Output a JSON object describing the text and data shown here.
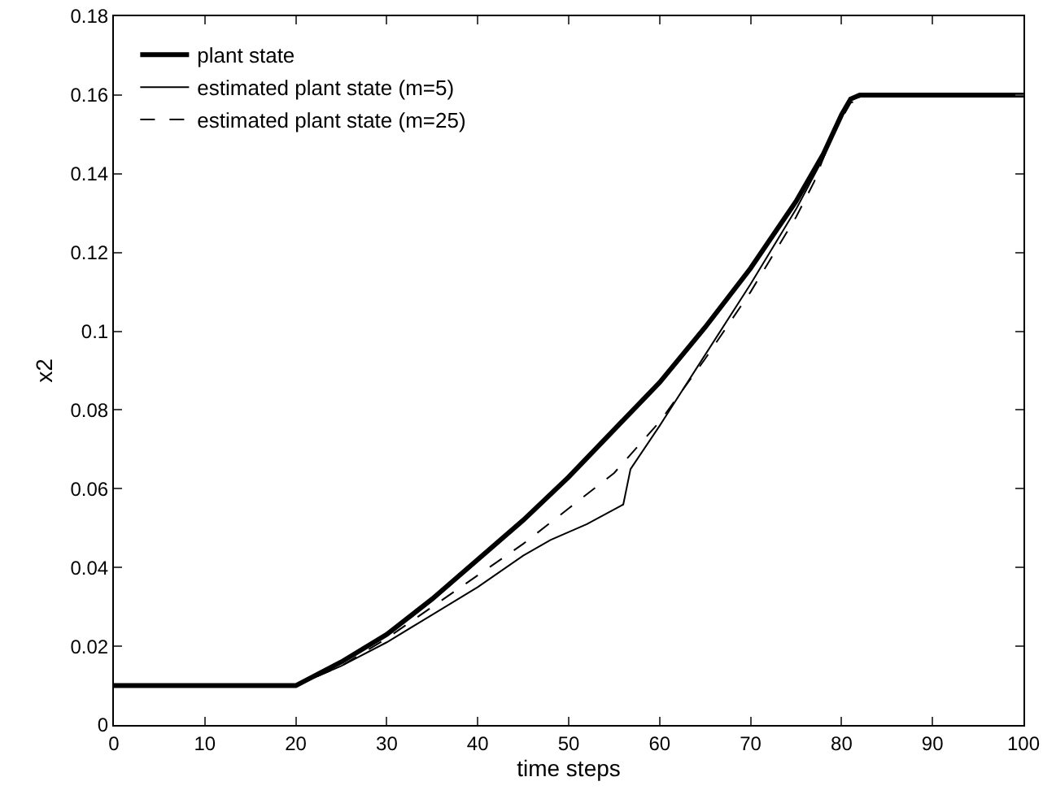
{
  "chart_data": {
    "type": "line",
    "xlabel": "time steps",
    "ylabel": "x2",
    "xlim": [
      0,
      100
    ],
    "ylim": [
      0,
      0.18
    ],
    "xticks": [
      0,
      10,
      20,
      30,
      40,
      50,
      60,
      70,
      80,
      90,
      100
    ],
    "yticks": [
      0,
      0.02,
      0.04,
      0.06,
      0.08,
      0.1,
      0.12,
      0.14,
      0.16,
      0.18
    ],
    "grid": false,
    "legend": "top left",
    "marker": "none",
    "series": [
      {
        "name": "plant state",
        "color": "#000000",
        "line_style": "solid",
        "x": [
          0,
          20,
          25,
          30,
          35,
          40,
          45,
          50,
          55,
          60,
          65,
          70,
          75,
          78,
          80,
          81,
          82,
          100
        ],
        "values": [
          0.01,
          0.01,
          0.016,
          0.023,
          0.032,
          0.042,
          0.052,
          0.063,
          0.075,
          0.087,
          0.101,
          0.116,
          0.133,
          0.145,
          0.155,
          0.159,
          0.16,
          0.16
        ]
      },
      {
        "name": "estimated plant state (m=5)",
        "color": "#000000",
        "line_style": "solid",
        "x": [
          0,
          20,
          25,
          30,
          35,
          40,
          45,
          48,
          52,
          56,
          56.8,
          60,
          65,
          70,
          75,
          78,
          80,
          81,
          83,
          100
        ],
        "values": [
          0.01,
          0.01,
          0.015,
          0.021,
          0.028,
          0.035,
          0.043,
          0.047,
          0.051,
          0.056,
          0.065,
          0.076,
          0.094,
          0.112,
          0.131,
          0.144,
          0.155,
          0.159,
          0.16,
          0.16
        ]
      },
      {
        "name": "estimated plant state (m=25)",
        "color": "#000000",
        "line_style": "dashed",
        "x": [
          0,
          20,
          25,
          30,
          35,
          40,
          45,
          50,
          55,
          60,
          65,
          70,
          75,
          77,
          79,
          81,
          83,
          100
        ],
        "values": [
          0.01,
          0.01,
          0.015,
          0.022,
          0.03,
          0.038,
          0.046,
          0.055,
          0.064,
          0.077,
          0.093,
          0.11,
          0.129,
          0.138,
          0.15,
          0.158,
          0.16,
          0.16
        ]
      }
    ]
  }
}
